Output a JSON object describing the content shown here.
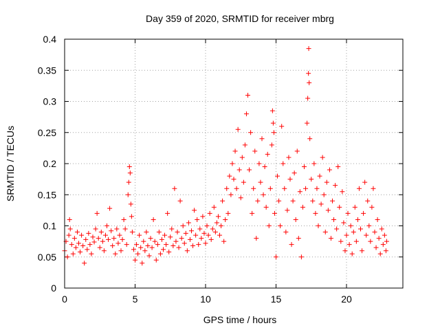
{
  "chart_data": {
    "type": "scatter",
    "title": "Day 359 of 2020, SRMTID for receiver mbrg",
    "xlabel": "GPS time / hours",
    "ylabel": "SRMTID / TECUs",
    "xlim": [
      0,
      24
    ],
    "ylim": [
      0,
      0.4
    ],
    "x_ticks": [
      0,
      5,
      10,
      15,
      20
    ],
    "x_tick_labels": [
      "0",
      "5",
      "10",
      "15",
      "20"
    ],
    "y_ticks": [
      0,
      0.05,
      0.1,
      0.15,
      0.2,
      0.25,
      0.3,
      0.35,
      0.4
    ],
    "y_tick_labels": [
      "0",
      "0.05",
      "0.1",
      "0.15",
      "0.2",
      "0.25",
      "0.3",
      "0.35",
      "0.4"
    ],
    "grid": true,
    "marker": "plus",
    "color": "#ff0000",
    "series": [
      {
        "name": "SRMTID",
        "points": [
          [
            0.0,
            0.06
          ],
          [
            0.1,
            0.075
          ],
          [
            0.2,
            0.05
          ],
          [
            0.3,
            0.085
          ],
          [
            0.35,
            0.11
          ],
          [
            0.4,
            0.095
          ],
          [
            0.5,
            0.07
          ],
          [
            0.6,
            0.055
          ],
          [
            0.7,
            0.08
          ],
          [
            0.8,
            0.065
          ],
          [
            0.9,
            0.09
          ],
          [
            1.0,
            0.072
          ],
          [
            1.1,
            0.058
          ],
          [
            1.2,
            0.085
          ],
          [
            1.3,
            0.068
          ],
          [
            1.4,
            0.04
          ],
          [
            1.5,
            0.078
          ],
          [
            1.6,
            0.062
          ],
          [
            1.7,
            0.088
          ],
          [
            1.8,
            0.07
          ],
          [
            1.9,
            0.055
          ],
          [
            2.0,
            0.082
          ],
          [
            2.1,
            0.074
          ],
          [
            2.2,
            0.095
          ],
          [
            2.3,
            0.12
          ],
          [
            2.4,
            0.08
          ],
          [
            2.5,
            0.065
          ],
          [
            2.6,
            0.09
          ],
          [
            2.7,
            0.075
          ],
          [
            2.8,
            0.06
          ],
          [
            2.9,
            0.085
          ],
          [
            3.0,
            0.1
          ],
          [
            3.1,
            0.078
          ],
          [
            3.2,
            0.128
          ],
          [
            3.3,
            0.092
          ],
          [
            3.4,
            0.068
          ],
          [
            3.5,
            0.08
          ],
          [
            3.6,
            0.055
          ],
          [
            3.7,
            0.095
          ],
          [
            3.8,
            0.072
          ],
          [
            3.9,
            0.085
          ],
          [
            4.0,
            0.06
          ],
          [
            4.1,
            0.078
          ],
          [
            4.2,
            0.11
          ],
          [
            4.3,
            0.095
          ],
          [
            4.4,
            0.07
          ],
          [
            4.5,
            0.15
          ],
          [
            4.55,
            0.17
          ],
          [
            4.6,
            0.195
          ],
          [
            4.65,
            0.185
          ],
          [
            4.7,
            0.135
          ],
          [
            4.75,
            0.115
          ],
          [
            4.8,
            0.09
          ],
          [
            4.9,
            0.062
          ],
          [
            5.0,
            0.045
          ],
          [
            5.1,
            0.07
          ],
          [
            5.2,
            0.055
          ],
          [
            5.3,
            0.085
          ],
          [
            5.4,
            0.065
          ],
          [
            5.5,
            0.04
          ],
          [
            5.6,
            0.075
          ],
          [
            5.7,
            0.06
          ],
          [
            5.8,
            0.09
          ],
          [
            5.9,
            0.068
          ],
          [
            6.0,
            0.052
          ],
          [
            6.1,
            0.08
          ],
          [
            6.2,
            0.065
          ],
          [
            6.3,
            0.11
          ],
          [
            6.4,
            0.075
          ],
          [
            6.5,
            0.045
          ],
          [
            6.6,
            0.07
          ],
          [
            6.7,
            0.09
          ],
          [
            6.8,
            0.055
          ],
          [
            6.9,
            0.078
          ],
          [
            7.0,
            0.062
          ],
          [
            7.1,
            0.085
          ],
          [
            7.2,
            0.07
          ],
          [
            7.3,
            0.12
          ],
          [
            7.4,
            0.058
          ],
          [
            7.5,
            0.082
          ],
          [
            7.6,
            0.095
          ],
          [
            7.7,
            0.068
          ],
          [
            7.8,
            0.16
          ],
          [
            7.9,
            0.075
          ],
          [
            8.0,
            0.09
          ],
          [
            8.1,
            0.065
          ],
          [
            8.2,
            0.14
          ],
          [
            8.3,
            0.08
          ],
          [
            8.4,
            0.1
          ],
          [
            8.5,
            0.072
          ],
          [
            8.6,
            0.088
          ],
          [
            8.7,
            0.06
          ],
          [
            8.8,
            0.105
          ],
          [
            8.9,
            0.078
          ],
          [
            9.0,
            0.092
          ],
          [
            9.1,
            0.068
          ],
          [
            9.2,
            0.125
          ],
          [
            9.3,
            0.085
          ],
          [
            9.4,
            0.11
          ],
          [
            9.5,
            0.07
          ],
          [
            9.6,
            0.095
          ],
          [
            9.7,
            0.08
          ],
          [
            9.8,
            0.115
          ],
          [
            9.9,
            0.088
          ],
          [
            10.0,
            0.072
          ],
          [
            10.1,
            0.1
          ],
          [
            10.2,
            0.085
          ],
          [
            10.3,
            0.12
          ],
          [
            10.4,
            0.078
          ],
          [
            10.5,
            0.095
          ],
          [
            10.6,
            0.13
          ],
          [
            10.7,
            0.09
          ],
          [
            10.8,
            0.105
          ],
          [
            10.9,
            0.115
          ],
          [
            11.0,
            0.085
          ],
          [
            11.1,
            0.1
          ],
          [
            11.2,
            0.14
          ],
          [
            11.3,
            0.075
          ],
          [
            11.4,
            0.11
          ],
          [
            11.5,
            0.16
          ],
          [
            11.6,
            0.12
          ],
          [
            11.7,
            0.18
          ],
          [
            11.8,
            0.15
          ],
          [
            11.9,
            0.2
          ],
          [
            12.0,
            0.175
          ],
          [
            12.1,
            0.22
          ],
          [
            12.2,
            0.16
          ],
          [
            12.3,
            0.255
          ],
          [
            12.4,
            0.19
          ],
          [
            12.5,
            0.145
          ],
          [
            12.6,
            0.21
          ],
          [
            12.7,
            0.17
          ],
          [
            12.8,
            0.23
          ],
          [
            12.9,
            0.28
          ],
          [
            13.0,
            0.31
          ],
          [
            13.1,
            0.19
          ],
          [
            13.2,
            0.25
          ],
          [
            13.3,
            0.12
          ],
          [
            13.4,
            0.16
          ],
          [
            13.5,
            0.22
          ],
          [
            13.6,
            0.08
          ],
          [
            13.7,
            0.14
          ],
          [
            13.8,
            0.2
          ],
          [
            13.9,
            0.17
          ],
          [
            14.0,
            0.24
          ],
          [
            14.1,
            0.15
          ],
          [
            14.2,
            0.195
          ],
          [
            14.3,
            0.13
          ],
          [
            14.4,
            0.215
          ],
          [
            14.5,
            0.1
          ],
          [
            14.6,
            0.16
          ],
          [
            14.7,
            0.23
          ],
          [
            14.75,
            0.285
          ],
          [
            14.8,
            0.265
          ],
          [
            14.85,
            0.25
          ],
          [
            14.9,
            0.12
          ],
          [
            15.0,
            0.05
          ],
          [
            15.1,
            0.18
          ],
          [
            15.2,
            0.14
          ],
          [
            15.3,
            0.1
          ],
          [
            15.4,
            0.26
          ],
          [
            15.5,
            0.2
          ],
          [
            15.6,
            0.16
          ],
          [
            15.7,
            0.09
          ],
          [
            15.8,
            0.125
          ],
          [
            15.9,
            0.21
          ],
          [
            16.0,
            0.175
          ],
          [
            16.1,
            0.07
          ],
          [
            16.2,
            0.14
          ],
          [
            16.3,
            0.185
          ],
          [
            16.4,
            0.11
          ],
          [
            16.5,
            0.22
          ],
          [
            16.6,
            0.08
          ],
          [
            16.7,
            0.155
          ],
          [
            16.8,
            0.05
          ],
          [
            16.9,
            0.13
          ],
          [
            17.0,
            0.195
          ],
          [
            17.1,
            0.16
          ],
          [
            17.2,
            0.265
          ],
          [
            17.25,
            0.305
          ],
          [
            17.3,
            0.345
          ],
          [
            17.32,
            0.385
          ],
          [
            17.35,
            0.33
          ],
          [
            17.4,
            0.24
          ],
          [
            17.5,
            0.175
          ],
          [
            17.6,
            0.14
          ],
          [
            17.7,
            0.2
          ],
          [
            17.8,
            0.12
          ],
          [
            17.9,
            0.16
          ],
          [
            18.0,
            0.1
          ],
          [
            18.1,
            0.18
          ],
          [
            18.2,
            0.135
          ],
          [
            18.3,
            0.21
          ],
          [
            18.4,
            0.15
          ],
          [
            18.5,
            0.09
          ],
          [
            18.6,
            0.17
          ],
          [
            18.7,
            0.125
          ],
          [
            18.8,
            0.19
          ],
          [
            18.9,
            0.08
          ],
          [
            19.0,
            0.14
          ],
          [
            19.1,
            0.11
          ],
          [
            19.2,
            0.165
          ],
          [
            19.3,
            0.095
          ],
          [
            19.4,
            0.195
          ],
          [
            19.5,
            0.13
          ],
          [
            19.6,
            0.075
          ],
          [
            19.7,
            0.155
          ],
          [
            19.8,
            0.105
          ],
          [
            19.9,
            0.06
          ],
          [
            20.0,
            0.085
          ],
          [
            20.1,
            0.12
          ],
          [
            20.2,
            0.07
          ],
          [
            20.3,
            0.1
          ],
          [
            20.4,
            0.055
          ],
          [
            20.5,
            0.09
          ],
          [
            20.6,
            0.13
          ],
          [
            20.7,
            0.075
          ],
          [
            20.8,
            0.11
          ],
          [
            20.9,
            0.16
          ],
          [
            21.0,
            0.095
          ],
          [
            21.1,
            0.06
          ],
          [
            21.2,
            0.12
          ],
          [
            21.3,
            0.17
          ],
          [
            21.4,
            0.085
          ],
          [
            21.5,
            0.14
          ],
          [
            21.6,
            0.1
          ],
          [
            21.7,
            0.075
          ],
          [
            21.8,
            0.13
          ],
          [
            21.9,
            0.16
          ],
          [
            22.0,
            0.09
          ],
          [
            22.1,
            0.065
          ],
          [
            22.2,
            0.11
          ],
          [
            22.3,
            0.08
          ],
          [
            22.4,
            0.055
          ],
          [
            22.5,
            0.095
          ],
          [
            22.6,
            0.07
          ],
          [
            22.7,
            0.085
          ],
          [
            22.8,
            0.06
          ],
          [
            22.85,
            0.075
          ]
        ]
      }
    ]
  }
}
